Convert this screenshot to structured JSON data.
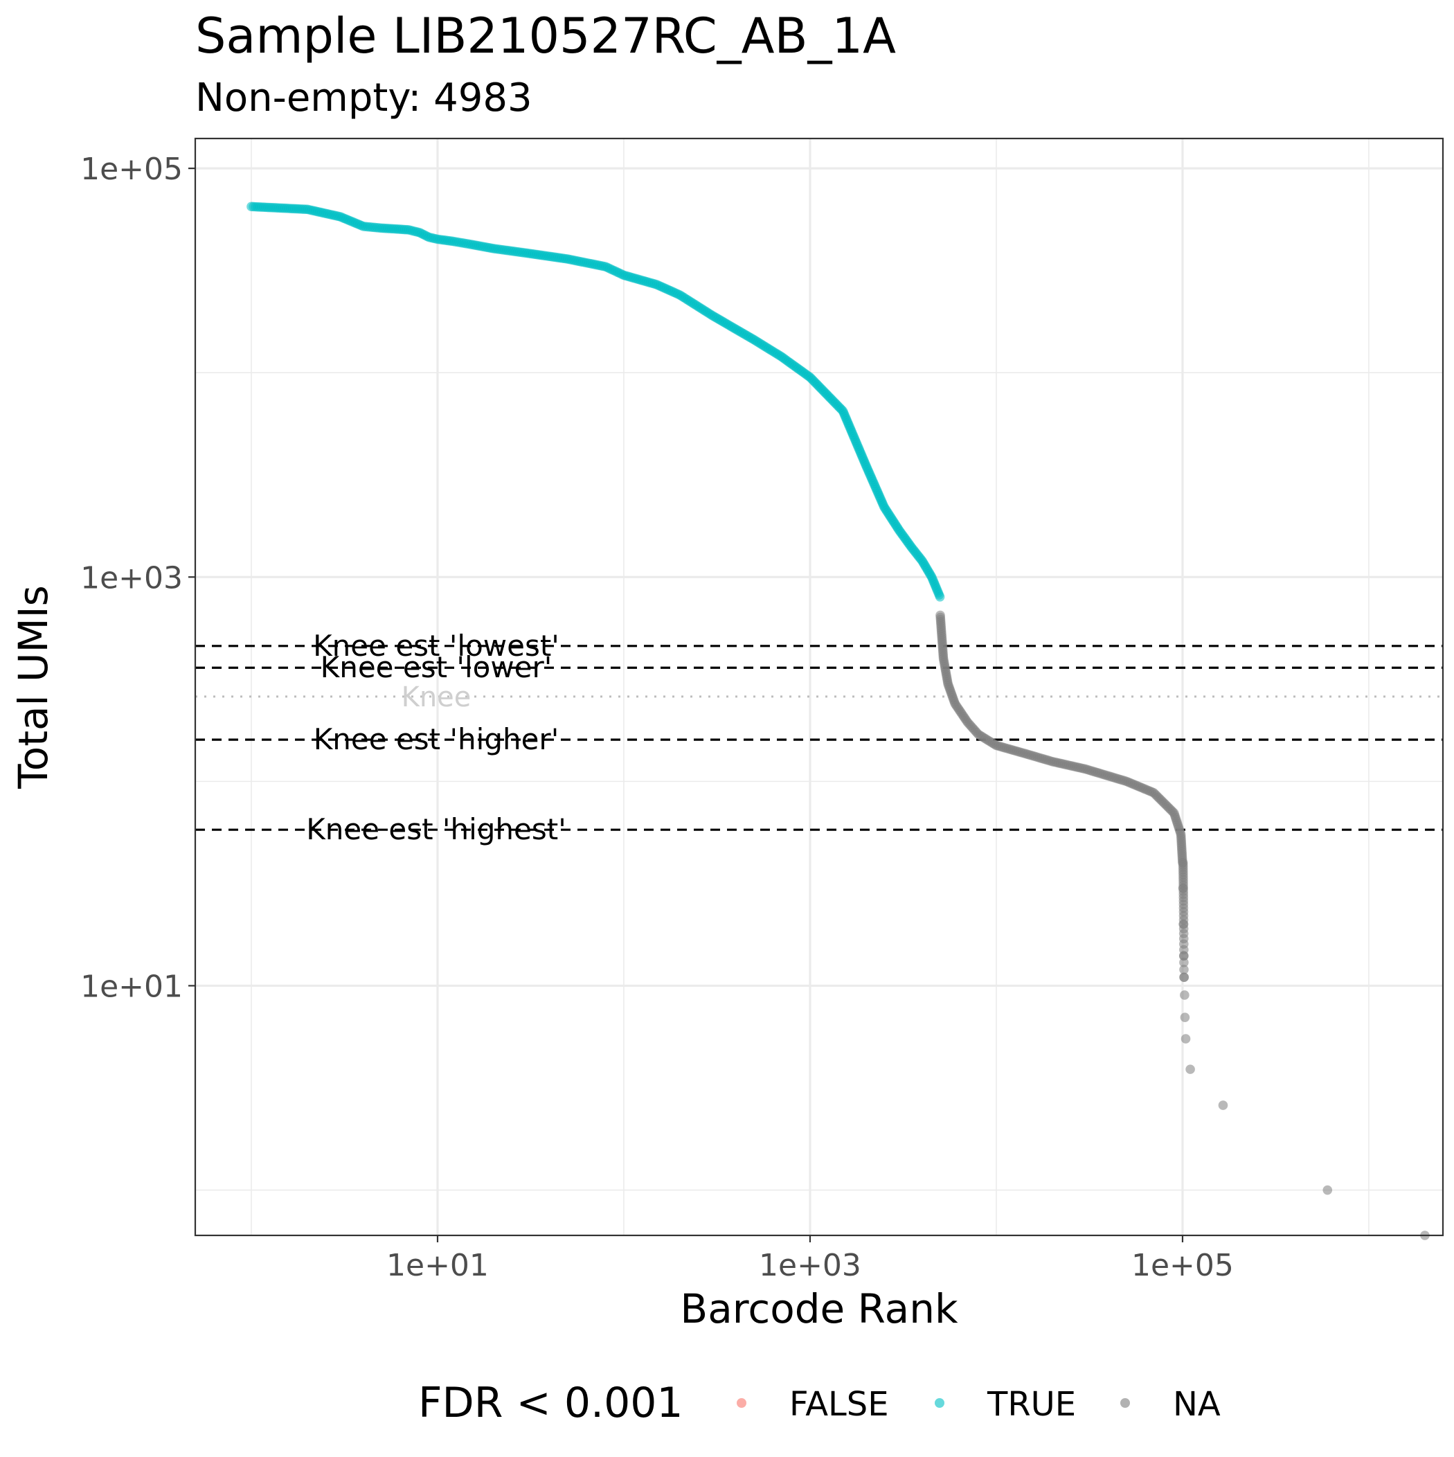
{
  "chart_data": {
    "type": "scatter",
    "title": "Sample LIB210527RC_AB_1A",
    "subtitle": "Non-empty: 4983",
    "xlabel": "Barcode Rank",
    "ylabel": "Total UMIs",
    "x_scale": "log10",
    "y_scale": "log10",
    "xlim": [
      0.5,
      2500000
    ],
    "ylim": [
      0.6,
      140000
    ],
    "x_ticks": [
      10,
      1000,
      100000
    ],
    "x_tick_labels": [
      "1e+01",
      "1e+03",
      "1e+05"
    ],
    "y_ticks": [
      10,
      1000,
      100000
    ],
    "y_tick_labels": [
      "1e+01",
      "1e+03",
      "1e+05"
    ],
    "grid": true,
    "legend": {
      "title": "FDR < 0.001",
      "position": "bottom",
      "entries": [
        {
          "label": "FALSE",
          "color": "#F8766D"
        },
        {
          "label": "TRUE",
          "color": "#00BFC4"
        },
        {
          "label": "NA",
          "color": "#7F7F7F"
        }
      ]
    },
    "series": [
      {
        "name": "TRUE",
        "color": "#00BFC4",
        "points": [
          [
            1,
            65000
          ],
          [
            2,
            63000
          ],
          [
            3,
            58000
          ],
          [
            4,
            52000
          ],
          [
            5,
            51000
          ],
          [
            6,
            50500
          ],
          [
            7,
            50000
          ],
          [
            8,
            48500
          ],
          [
            9,
            46000
          ],
          [
            10,
            45000
          ],
          [
            12,
            44000
          ],
          [
            15,
            42500
          ],
          [
            20,
            40500
          ],
          [
            30,
            38500
          ],
          [
            50,
            36000
          ],
          [
            80,
            33000
          ],
          [
            100,
            30000
          ],
          [
            150,
            27000
          ],
          [
            200,
            24000
          ],
          [
            300,
            19000
          ],
          [
            500,
            14500
          ],
          [
            700,
            12000
          ],
          [
            1000,
            9500
          ],
          [
            1500,
            6500
          ],
          [
            2000,
            3500
          ],
          [
            2500,
            2200
          ],
          [
            3000,
            1700
          ],
          [
            3500,
            1400
          ],
          [
            4000,
            1200
          ],
          [
            4500,
            1000
          ],
          [
            4983,
            800
          ]
        ]
      },
      {
        "name": "NA",
        "color": "#7F7F7F",
        "points": [
          [
            5000,
            650
          ],
          [
            5200,
            400
          ],
          [
            5500,
            300
          ],
          [
            6000,
            240
          ],
          [
            7000,
            195
          ],
          [
            8000,
            170
          ],
          [
            10000,
            150
          ],
          [
            15000,
            135
          ],
          [
            20000,
            125
          ],
          [
            30000,
            115
          ],
          [
            50000,
            100
          ],
          [
            70000,
            88
          ],
          [
            90000,
            70
          ],
          [
            98000,
            55
          ],
          [
            100000,
            40
          ],
          [
            100500,
            30
          ],
          [
            101000,
            20
          ],
          [
            101500,
            14
          ],
          [
            102000,
            11
          ],
          [
            102500,
            9
          ],
          [
            103000,
            7
          ],
          [
            104000,
            5.5
          ],
          [
            110000,
            3.9
          ],
          [
            165000,
            2.6
          ],
          [
            600000,
            1
          ],
          [
            2000000,
            0.6
          ]
        ]
      }
    ],
    "hlines": [
      {
        "y": 460,
        "label": "Knee est 'lowest'",
        "style": "dashed",
        "color": "#000000"
      },
      {
        "y": 360,
        "label": "Knee est 'lower'",
        "style": "dashed",
        "color": "#000000"
      },
      {
        "y": 160,
        "label": "Knee est 'higher'",
        "style": "dashed",
        "color": "#000000"
      },
      {
        "y": 58,
        "label": "Knee est 'highest'",
        "style": "dashed",
        "color": "#000000"
      },
      {
        "y": 260,
        "label": "Knee",
        "style": "dotted",
        "color": "#BDBDBD"
      }
    ]
  }
}
